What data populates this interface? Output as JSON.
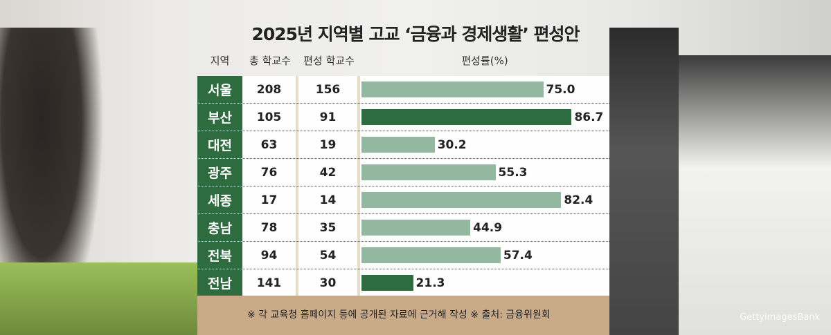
{
  "chart_data": {
    "type": "bar",
    "title": "2025년 지역별 고교 ‘금융과 경제생활’ 편성안",
    "columns": [
      "지역",
      "총 학교수",
      "편성 학교수",
      "편성률(%)"
    ],
    "categories": [
      "서울",
      "부산",
      "대전",
      "광주",
      "세종",
      "충남",
      "전북",
      "전남"
    ],
    "total_schools": [
      "208",
      "105",
      "63",
      "76",
      "17",
      "78",
      "94",
      "141"
    ],
    "assigned_schools": [
      "156",
      "91",
      "19",
      "42",
      "14",
      "35",
      "54",
      "30"
    ],
    "values": [
      75.0,
      86.7,
      30.2,
      55.3,
      82.4,
      44.9,
      57.4,
      21.3
    ],
    "value_labels": [
      "75.0",
      "86.7",
      "30.2",
      "55.3",
      "82.4",
      "44.9",
      "57.4",
      "21.3"
    ],
    "highlight": [
      false,
      true,
      false,
      false,
      false,
      false,
      false,
      true
    ],
    "colors": {
      "bar": "#93b8a0",
      "highlight": "#2e6b3f",
      "region": "#2e6b3f"
    },
    "xlim": [
      0,
      100
    ]
  },
  "footnote": "※ 각 교육청 홈페이지 등에 공개된 자료에 근거해 작성   ※ 출처: 금융위원회",
  "credit": "GettyimagesBank"
}
